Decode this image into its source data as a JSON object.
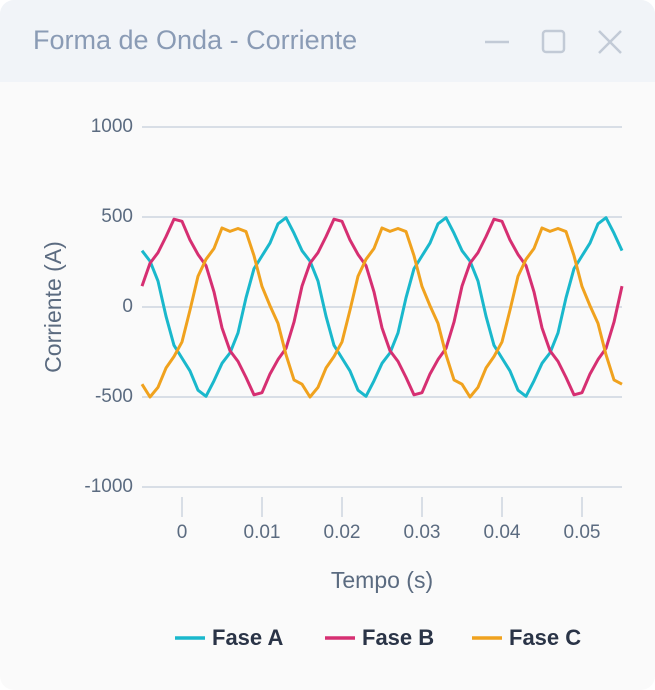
{
  "chart_data": {
    "type": "line",
    "title": "Forma de Onda - Corriente",
    "x_label": "Tempo (s)",
    "y_label": "Corriente (A)",
    "x": [
      -0.005,
      -0.004,
      -0.003,
      -0.002,
      -0.001,
      0,
      0.001,
      0.002,
      0.003,
      0.004,
      0.005,
      0.006,
      0.007,
      0.008,
      0.009,
      0.01,
      0.011,
      0.012,
      0.013,
      0.014,
      0.015,
      0.016,
      0.017,
      0.018,
      0.019,
      0.02,
      0.021,
      0.022,
      0.023,
      0.024,
      0.025,
      0.026,
      0.027,
      0.028,
      0.029,
      0.03,
      0.031,
      0.032,
      0.033,
      0.034,
      0.035,
      0.036,
      0.037,
      0.038,
      0.039,
      0.04,
      0.041,
      0.042,
      0.043,
      0.044,
      0.045,
      0.046,
      0.047,
      0.048,
      0.049,
      0.05,
      0.051,
      0.052,
      0.053,
      0.054,
      0.055
    ],
    "series": [
      {
        "name": "Fase A",
        "color": "#1ab8cc",
        "values": [
          313,
          255,
          144,
          -51,
          -213,
          -284,
          -355,
          -462,
          -496,
          -410,
          -313,
          -255,
          -144,
          51,
          213,
          284,
          355,
          462,
          496,
          410,
          313,
          255,
          144,
          -51,
          -213,
          -284,
          -355,
          -462,
          -496,
          -410,
          -313,
          -255,
          -144,
          51,
          213,
          284,
          355,
          462,
          496,
          410,
          313,
          255,
          144,
          -51,
          -213,
          -284,
          -355,
          -462,
          -496,
          -410,
          -313,
          -255,
          -144,
          51,
          213,
          284,
          355,
          462,
          496,
          410,
          313
        ]
      },
      {
        "name": "Fase B",
        "color": "#d62f72",
        "values": [
          116,
          243,
          302,
          391,
          488,
          476,
          372,
          292,
          230,
          84,
          -116,
          -243,
          -302,
          -391,
          -488,
          -476,
          -372,
          -292,
          -230,
          -84,
          116,
          243,
          302,
          391,
          488,
          476,
          372,
          292,
          230,
          84,
          -116,
          -243,
          -302,
          -391,
          -488,
          -476,
          -372,
          -292,
          -230,
          -84,
          116,
          243,
          302,
          391,
          488,
          476,
          372,
          292,
          230,
          84,
          -116,
          -243,
          -302,
          -391,
          -488,
          -476,
          -372,
          -292,
          -230,
          -84,
          116
        ]
      },
      {
        "name": "Fase C",
        "color": "#f0a21e",
        "values": [
          -429,
          -500,
          -446,
          -339,
          -275,
          -194,
          -17,
          171,
          265,
          325,
          439,
          420,
          436,
          419,
          285,
          114,
          7,
          -91,
          -265,
          -405,
          -429,
          -500,
          -446,
          -339,
          -275,
          -194,
          -17,
          171,
          265,
          325,
          439,
          420,
          436,
          419,
          285,
          114,
          7,
          -91,
          -265,
          -405,
          -429,
          -500,
          -446,
          -339,
          -275,
          -194,
          -17,
          171,
          265,
          325,
          439,
          420,
          436,
          419,
          285,
          114,
          7,
          -91,
          -265,
          -405,
          -429
        ]
      }
    ],
    "xlim": [
      -0.005,
      0.055
    ],
    "xticks": [
      0,
      0.01,
      0.02,
      0.03,
      0.04,
      0.05
    ],
    "ylim": [
      -1000,
      1000
    ],
    "yticks": [
      -1000,
      -500,
      0,
      500,
      1000
    ],
    "grid": true,
    "legend": "bottom"
  }
}
